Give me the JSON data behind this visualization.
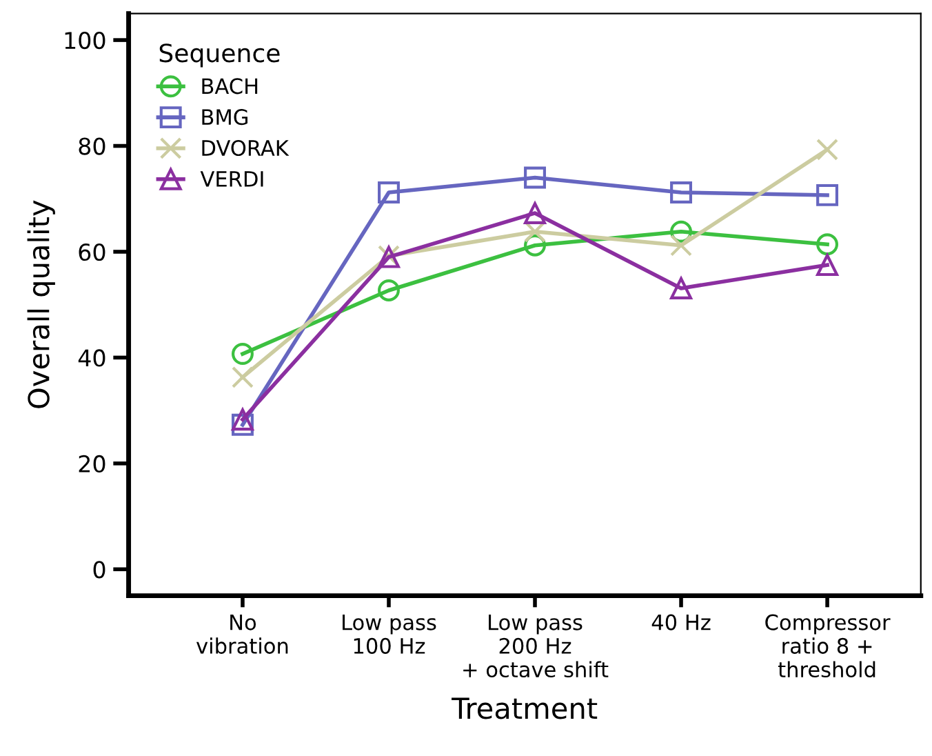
{
  "chart_data": {
    "type": "line",
    "xlabel": "Treatment",
    "ylabel": "Overall quality",
    "legend_title": "Sequence",
    "legend": "top left",
    "grid": false,
    "categories": [
      "No\nvibration",
      "Low pass\n100 Hz",
      "Low pass\n200 Hz\n+ octave shift",
      "40 Hz",
      "Compressor\nratio 8 +\nthreshold"
    ],
    "ylim": [
      -5,
      105
    ],
    "yticks": [
      0,
      20,
      40,
      60,
      80,
      100
    ],
    "series": [
      {
        "name": "BACH",
        "color": "#3cc040",
        "marker": "circle",
        "values": [
          40.7,
          52.7,
          61.2,
          63.8,
          61.4
        ]
      },
      {
        "name": "BMG",
        "color": "#6666c0",
        "marker": "square",
        "values": [
          27.3,
          71.2,
          74.0,
          71.2,
          70.7
        ]
      },
      {
        "name": "DVORAK",
        "color": "#cccca0",
        "marker": "cross",
        "values": [
          36.3,
          59.2,
          63.8,
          61.2,
          79.3
        ]
      },
      {
        "name": "VERDI",
        "color": "#8b2fa0",
        "marker": "triangle",
        "values": [
          28.3,
          59.0,
          67.3,
          53.1,
          57.5
        ]
      }
    ]
  }
}
